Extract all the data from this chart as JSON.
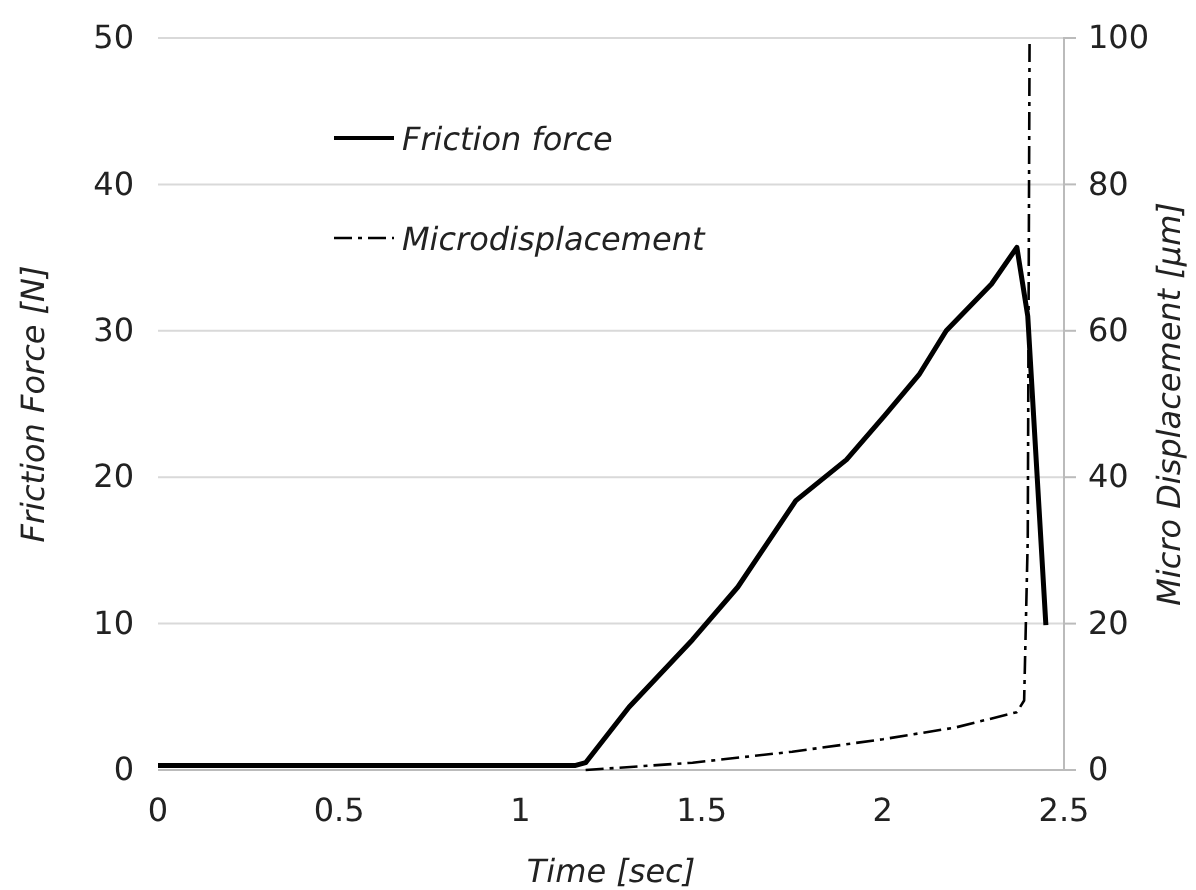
{
  "chart_data": {
    "type": "line",
    "xlabel": "Time [sec]",
    "ylabel": "Friction Force [N]",
    "y2label": "Micro Displacement [μm]",
    "xlim": [
      0,
      2.5
    ],
    "xticks": [
      0,
      0.5,
      1,
      1.5,
      2,
      2.5
    ],
    "ylim": [
      0,
      50
    ],
    "yticks": [
      0,
      10,
      20,
      30,
      40,
      50
    ],
    "y2lim": [
      0,
      100
    ],
    "y2ticks": [
      0,
      20,
      40,
      60,
      80,
      100
    ],
    "grid": "y",
    "legend": "top left",
    "series": [
      {
        "name": "Friction force",
        "color": "#000000",
        "line_style": "solid",
        "x": [
          0,
          0.5,
          1,
          1.15,
          1.18,
          1.3,
          1.475,
          1.6,
          1.76,
          1.9,
          2.005,
          2.1,
          2.175,
          2.3,
          2.37,
          2.4,
          2.45
        ],
        "values": [
          0.3,
          0.3,
          0.3,
          0.3,
          0.5,
          4.3,
          8.9,
          12.5,
          18.4,
          21.2,
          24.2,
          27,
          30,
          33.2,
          35.7,
          31,
          9.9
        ]
      },
      {
        "name": "Microdisplacement",
        "color": "#000000",
        "line_style": "dashed",
        "axis": "y2",
        "x": [
          1.18,
          1.475,
          1.75,
          2.0,
          2.2,
          2.37,
          2.39,
          2.4,
          2.405
        ],
        "values": [
          0,
          1,
          2.5,
          4.2,
          5.8,
          7.9,
          9.5,
          31.6,
          100
        ]
      }
    ]
  }
}
